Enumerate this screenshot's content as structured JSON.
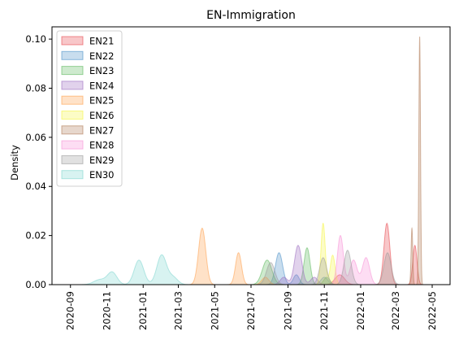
{
  "chart_data": {
    "type": "area",
    "title": "EN-Immigration",
    "xlabel": "",
    "ylabel": "Density",
    "x_axis": {
      "type": "date",
      "lim": [
        "2020-08-01",
        "2022-05-31"
      ],
      "ticks": [
        "2020-09",
        "2020-11",
        "2021-01",
        "2021-03",
        "2021-05",
        "2021-07",
        "2021-09",
        "2021-11",
        "2022-01",
        "2022-03",
        "2022-05"
      ]
    },
    "ylim": [
      0,
      0.105
    ],
    "y_ticks": [
      "0.00",
      "0.02",
      "0.04",
      "0.06",
      "0.08",
      "0.10"
    ],
    "grid": false,
    "legend_placement": "top-left",
    "series": [
      {
        "name": "EN21",
        "color": "#e8474c",
        "peaks": [
          {
            "date": "2021-11-27",
            "height": 0.004,
            "width": 8
          },
          {
            "date": "2022-02-14",
            "height": 0.025,
            "width": 5
          },
          {
            "date": "2022-04-02",
            "height": 0.016,
            "width": 3.5
          }
        ]
      },
      {
        "name": "EN22",
        "color": "#4a90c8",
        "peaks": [
          {
            "date": "2021-08-17",
            "height": 0.013,
            "width": 6
          },
          {
            "date": "2021-09-15",
            "height": 0.004,
            "width": 5
          },
          {
            "date": "2021-11-01",
            "height": 0.003,
            "width": 6
          }
        ]
      },
      {
        "name": "EN23",
        "color": "#5cb85c",
        "peaks": [
          {
            "date": "2021-07-28",
            "height": 0.01,
            "width": 8
          },
          {
            "date": "2021-10-03",
            "height": 0.015,
            "width": 5
          },
          {
            "date": "2021-11-05",
            "height": 0.003,
            "width": 5
          }
        ]
      },
      {
        "name": "EN24",
        "color": "#9b6bbf",
        "peaks": [
          {
            "date": "2021-08-25",
            "height": 0.003,
            "width": 6
          },
          {
            "date": "2021-09-18",
            "height": 0.016,
            "width": 6
          },
          {
            "date": "2021-10-15",
            "height": 0.003,
            "width": 6
          }
        ]
      },
      {
        "name": "EN25",
        "color": "#ff9f4a",
        "peaks": [
          {
            "date": "2021-04-10",
            "height": 0.023,
            "width": 6
          },
          {
            "date": "2021-06-10",
            "height": 0.013,
            "width": 5
          },
          {
            "date": "2021-07-25",
            "height": 0.003,
            "width": 6
          }
        ]
      },
      {
        "name": "EN26",
        "color": "#f5f542",
        "peaks": [
          {
            "date": "2021-10-30",
            "height": 0.025,
            "width": 3.5
          },
          {
            "date": "2021-11-15",
            "height": 0.012,
            "width": 4
          }
        ]
      },
      {
        "name": "EN27",
        "color": "#b07a55",
        "peaks": [
          {
            "date": "2022-04-10",
            "height": 0.101,
            "width": 1.4
          },
          {
            "date": "2022-03-28",
            "height": 0.023,
            "width": 1.4
          }
        ]
      },
      {
        "name": "EN28",
        "color": "#f78fd6",
        "peaks": [
          {
            "date": "2021-11-28",
            "height": 0.02,
            "width": 5
          },
          {
            "date": "2021-12-20",
            "height": 0.01,
            "width": 6
          },
          {
            "date": "2022-01-10",
            "height": 0.011,
            "width": 6
          }
        ]
      },
      {
        "name": "EN29",
        "color": "#9a9a9a",
        "peaks": [
          {
            "date": "2021-08-03",
            "height": 0.009,
            "width": 7
          },
          {
            "date": "2021-10-30",
            "height": 0.011,
            "width": 6
          },
          {
            "date": "2021-12-10",
            "height": 0.014,
            "width": 6
          },
          {
            "date": "2022-02-15",
            "height": 0.013,
            "width": 6
          }
        ]
      },
      {
        "name": "EN30",
        "color": "#7fd6cf",
        "peaks": [
          {
            "date": "2020-10-20",
            "height": 0.002,
            "width": 10
          },
          {
            "date": "2020-11-10",
            "height": 0.005,
            "width": 8
          },
          {
            "date": "2020-12-25",
            "height": 0.01,
            "width": 8
          },
          {
            "date": "2021-02-01",
            "height": 0.012,
            "width": 8
          },
          {
            "date": "2021-02-20",
            "height": 0.003,
            "width": 8
          }
        ]
      }
    ]
  }
}
